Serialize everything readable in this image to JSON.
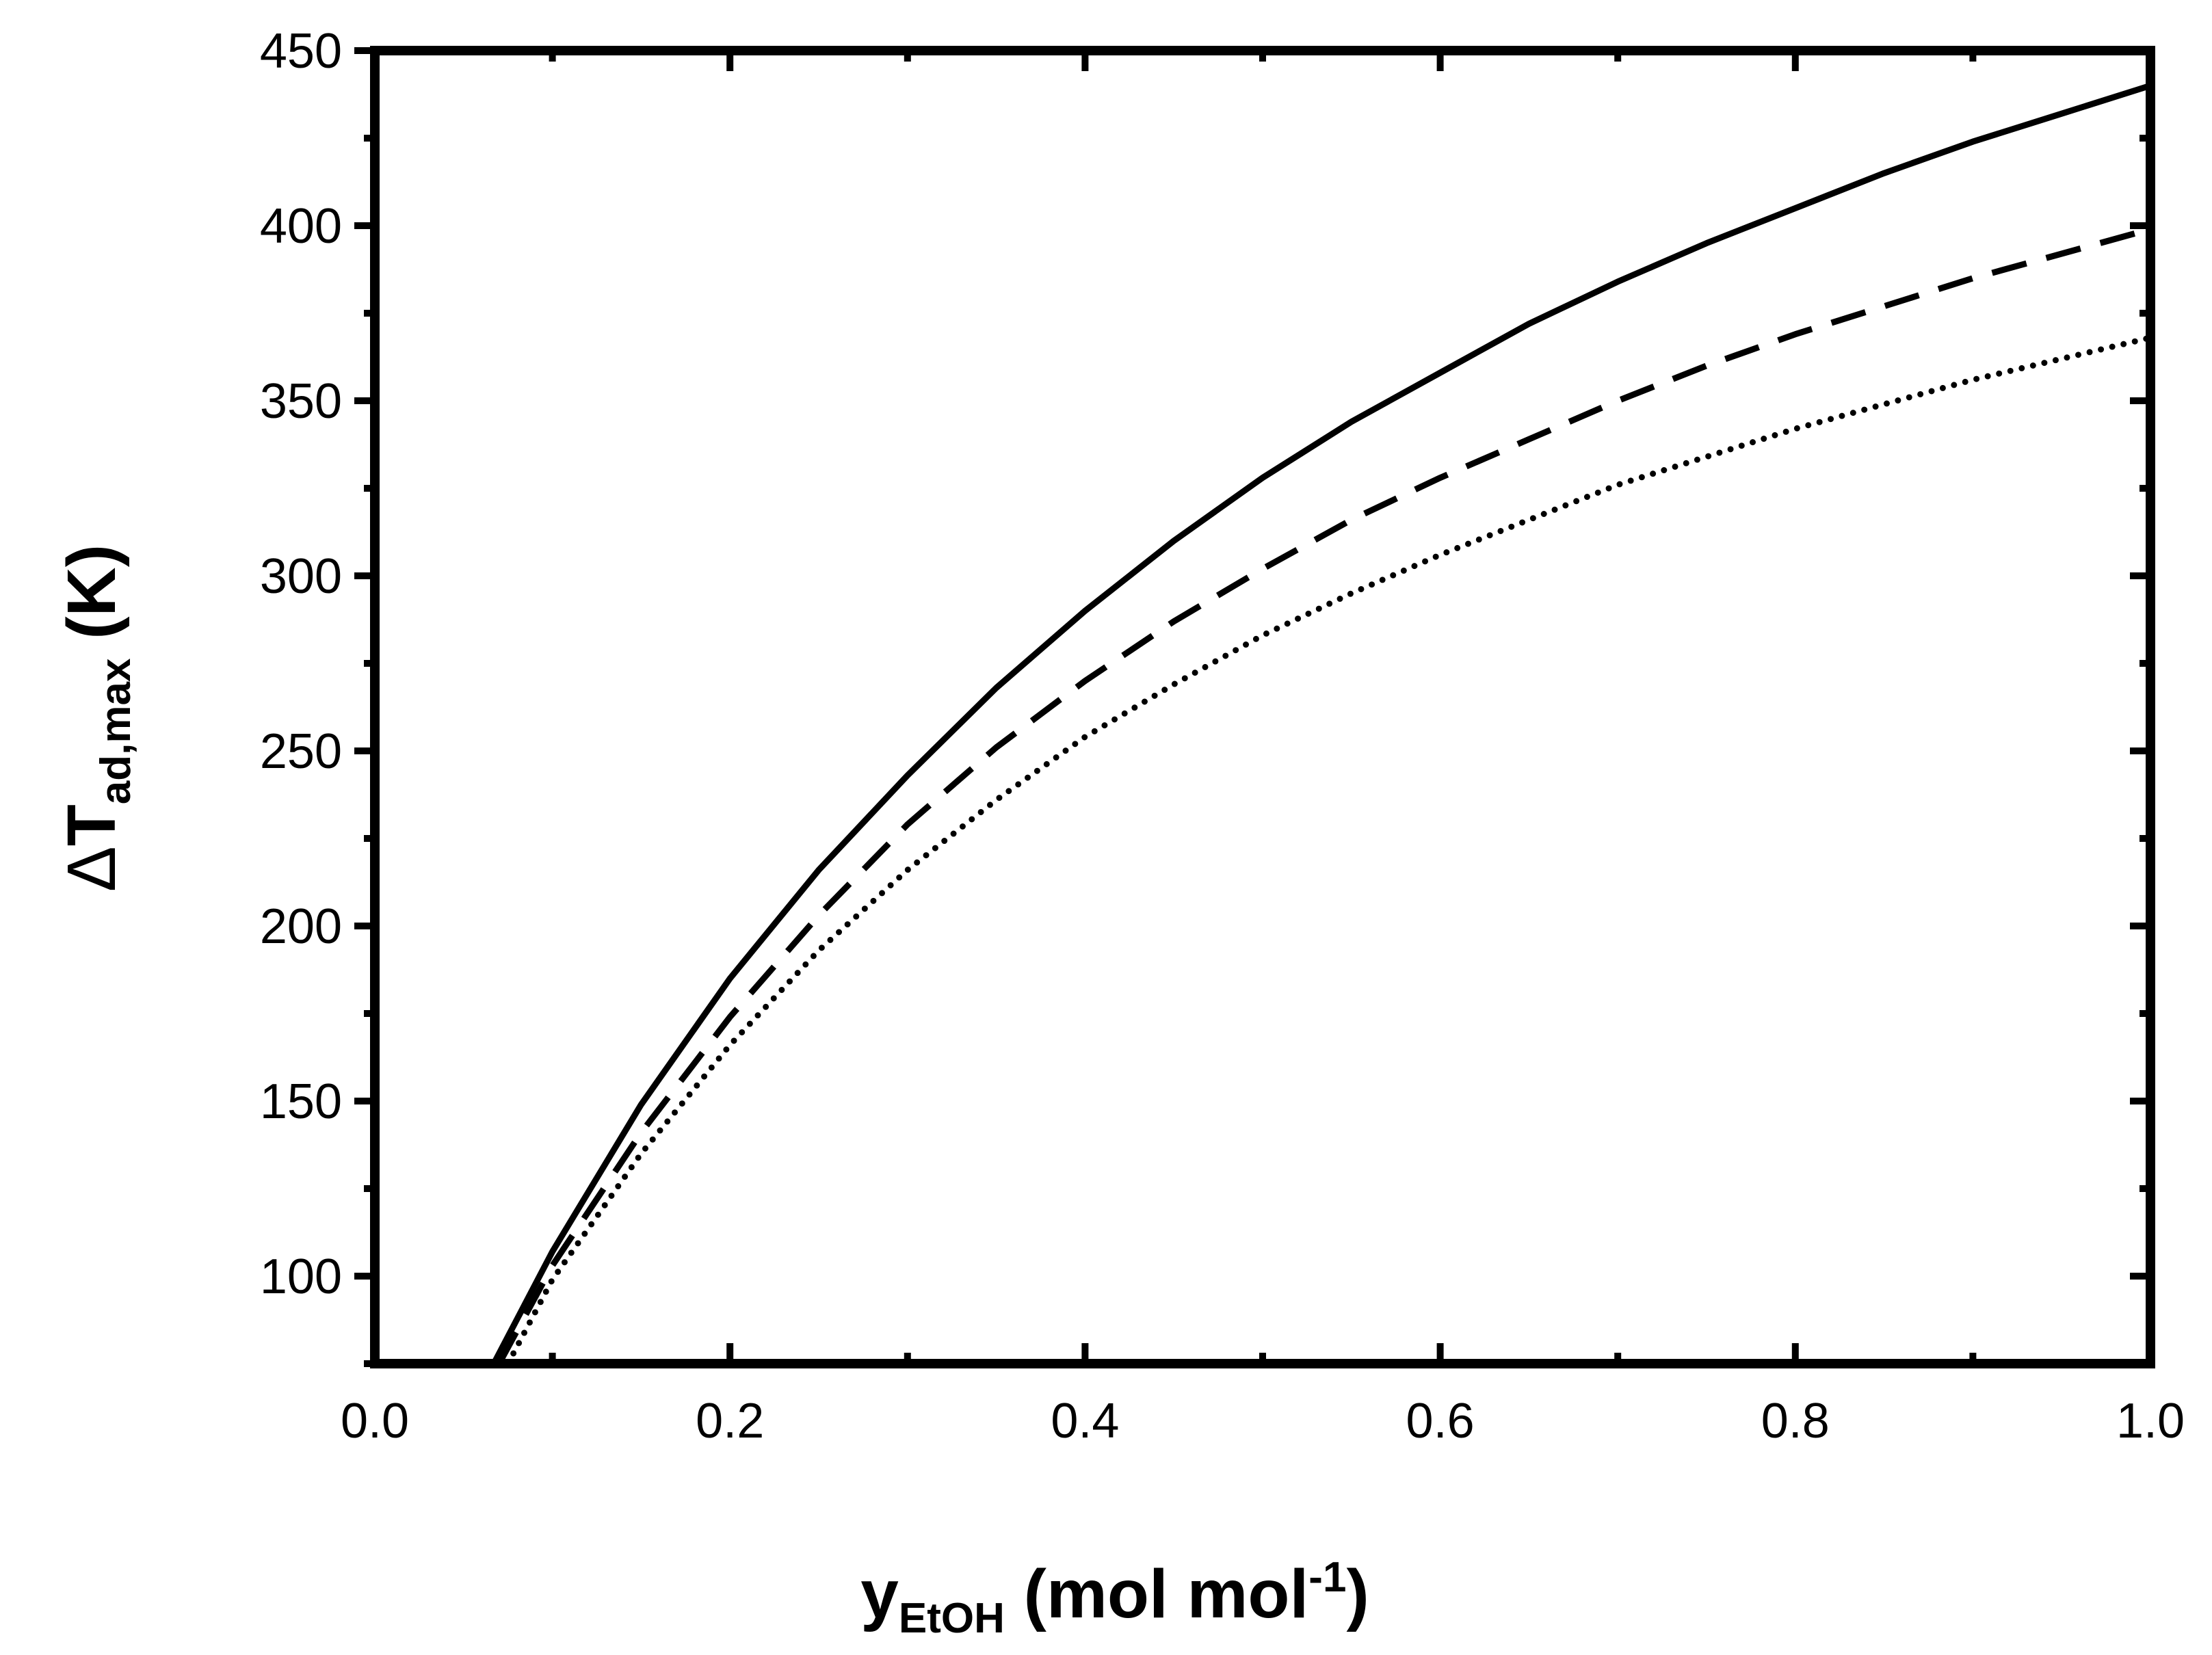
{
  "chart_data": {
    "type": "line",
    "title": "",
    "xlabel": {
      "main": "y",
      "subscript": "EtOH",
      "unit_open": " (mol mol",
      "unit_superscript": "-1",
      "unit_close": ")"
    },
    "ylabel": {
      "delta": "Δ",
      "main": "T",
      "subscript": "ad,max",
      "unit": " (K)"
    },
    "xlim": [
      0.0,
      1.0
    ],
    "ylim": [
      75,
      450
    ],
    "x_ticks": [
      0.0,
      0.2,
      0.4,
      0.6,
      0.8,
      1.0
    ],
    "x_tick_labels": [
      "0.0",
      "0.2",
      "0.4",
      "0.6",
      "0.8",
      "1.0"
    ],
    "x_minor_ticks": [
      0.1,
      0.3,
      0.5,
      0.7,
      0.9
    ],
    "y_ticks": [
      100,
      150,
      200,
      250,
      300,
      350,
      400,
      450
    ],
    "y_tick_labels": [
      "100",
      "150",
      "200",
      "250",
      "300",
      "350",
      "400",
      "450"
    ],
    "y_minor_ticks": [
      75,
      125,
      175,
      225,
      275,
      325,
      375,
      425
    ],
    "grid": false,
    "legend": "none",
    "series": [
      {
        "name": "solid",
        "style": "solid",
        "color": "#000000",
        "x": [
          0.067,
          0.1,
          0.15,
          0.2,
          0.25,
          0.3,
          0.35,
          0.4,
          0.45,
          0.5,
          0.55,
          0.6,
          0.65,
          0.7,
          0.75,
          0.8,
          0.85,
          0.9,
          0.95,
          1.0
        ],
        "y": [
          75,
          107,
          149,
          185,
          216,
          243,
          268,
          290,
          310,
          328,
          344,
          358,
          372,
          384,
          395,
          405,
          415,
          424,
          432,
          440
        ]
      },
      {
        "name": "dashed",
        "style": "dashed",
        "color": "#000000",
        "x": [
          0.07,
          0.1,
          0.15,
          0.2,
          0.25,
          0.3,
          0.35,
          0.4,
          0.45,
          0.5,
          0.55,
          0.6,
          0.65,
          0.7,
          0.75,
          0.8,
          0.85,
          0.9,
          0.95,
          1.0
        ],
        "y": [
          75,
          103,
          141,
          174,
          203,
          229,
          251,
          270,
          287,
          302,
          316,
          328,
          339,
          350,
          360,
          369,
          377,
          385,
          392,
          399
        ]
      },
      {
        "name": "dotted",
        "style": "dotted",
        "color": "#000000",
        "x": [
          0.075,
          0.1,
          0.15,
          0.2,
          0.25,
          0.3,
          0.35,
          0.4,
          0.45,
          0.5,
          0.55,
          0.6,
          0.65,
          0.7,
          0.75,
          0.8,
          0.85,
          0.9,
          0.95,
          1.0
        ],
        "y": [
          75,
          99,
          135,
          166,
          193,
          216,
          236,
          254,
          269,
          283,
          295,
          306,
          316,
          326,
          334,
          342,
          349,
          356,
          362,
          368
        ]
      }
    ]
  }
}
